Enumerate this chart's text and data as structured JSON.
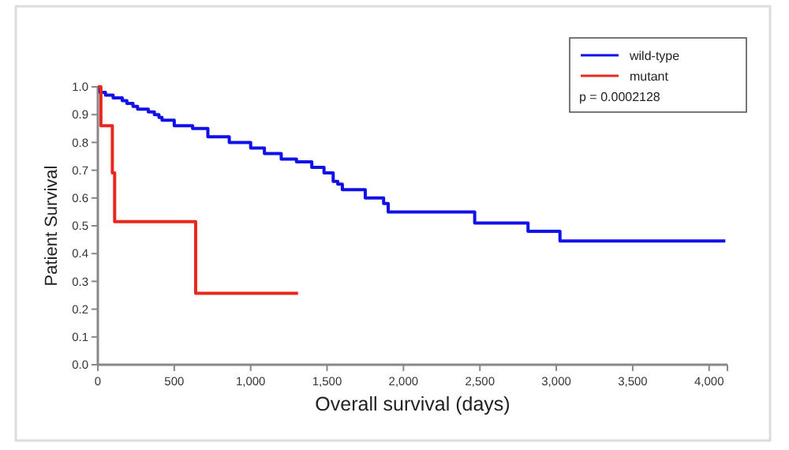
{
  "chart_data": {
    "type": "step",
    "xlabel": "Overall survival (days)",
    "ylabel": "Patient Survival",
    "xlim": [
      0,
      4120
    ],
    "ylim": [
      0,
      1
    ],
    "xticks": [
      {
        "value": 0,
        "label": "0"
      },
      {
        "value": 500,
        "label": "500"
      },
      {
        "value": 1000,
        "label": "1,000"
      },
      {
        "value": 1500,
        "label": "1,500"
      },
      {
        "value": 2000,
        "label": "2,000"
      },
      {
        "value": 2500,
        "label": "2,500"
      },
      {
        "value": 3000,
        "label": "3,000"
      },
      {
        "value": 3500,
        "label": "3,500"
      },
      {
        "value": 4000,
        "label": "4,000"
      }
    ],
    "yticks": [
      {
        "value": 0,
        "label": "0.0"
      },
      {
        "value": 0.1,
        "label": "0.1"
      },
      {
        "value": 0.2,
        "label": "0.2"
      },
      {
        "value": 0.3,
        "label": "0.3"
      },
      {
        "value": 0.4,
        "label": "0.4"
      },
      {
        "value": 0.5,
        "label": "0.5"
      },
      {
        "value": 0.6,
        "label": "0.6"
      },
      {
        "value": 0.7,
        "label": "0.7"
      },
      {
        "value": 0.8,
        "label": "0.8"
      },
      {
        "value": 0.9,
        "label": "0.9"
      },
      {
        "value": 1,
        "label": "1.0"
      }
    ],
    "series": [
      {
        "name": "wild-type",
        "color": "#1010e8",
        "x": [
          0,
          15,
          50,
          100,
          160,
          190,
          230,
          260,
          330,
          370,
          400,
          420,
          500,
          620,
          720,
          860,
          1000,
          1090,
          1200,
          1300,
          1400,
          1480,
          1540,
          1570,
          1600,
          1750,
          1870,
          1900,
          2466,
          2815,
          3024,
          4106
        ],
        "values": [
          1,
          0.98,
          0.97,
          0.96,
          0.95,
          0.94,
          0.93,
          0.92,
          0.91,
          0.9,
          0.89,
          0.88,
          0.86,
          0.85,
          0.82,
          0.8,
          0.78,
          0.76,
          0.74,
          0.73,
          0.71,
          0.69,
          0.66,
          0.65,
          0.63,
          0.6,
          0.58,
          0.55,
          0.51,
          0.48,
          0.445,
          0.445
        ]
      },
      {
        "name": "mutant",
        "color": "#e8281e",
        "x": [
          0,
          20,
          95,
          110,
          640,
          1310
        ],
        "values": [
          1,
          0.86,
          0.69,
          0.515,
          0.257,
          0.257
        ]
      }
    ],
    "legend": "top right",
    "grid": false,
    "annotations": [
      "p = 0.0002128"
    ]
  }
}
